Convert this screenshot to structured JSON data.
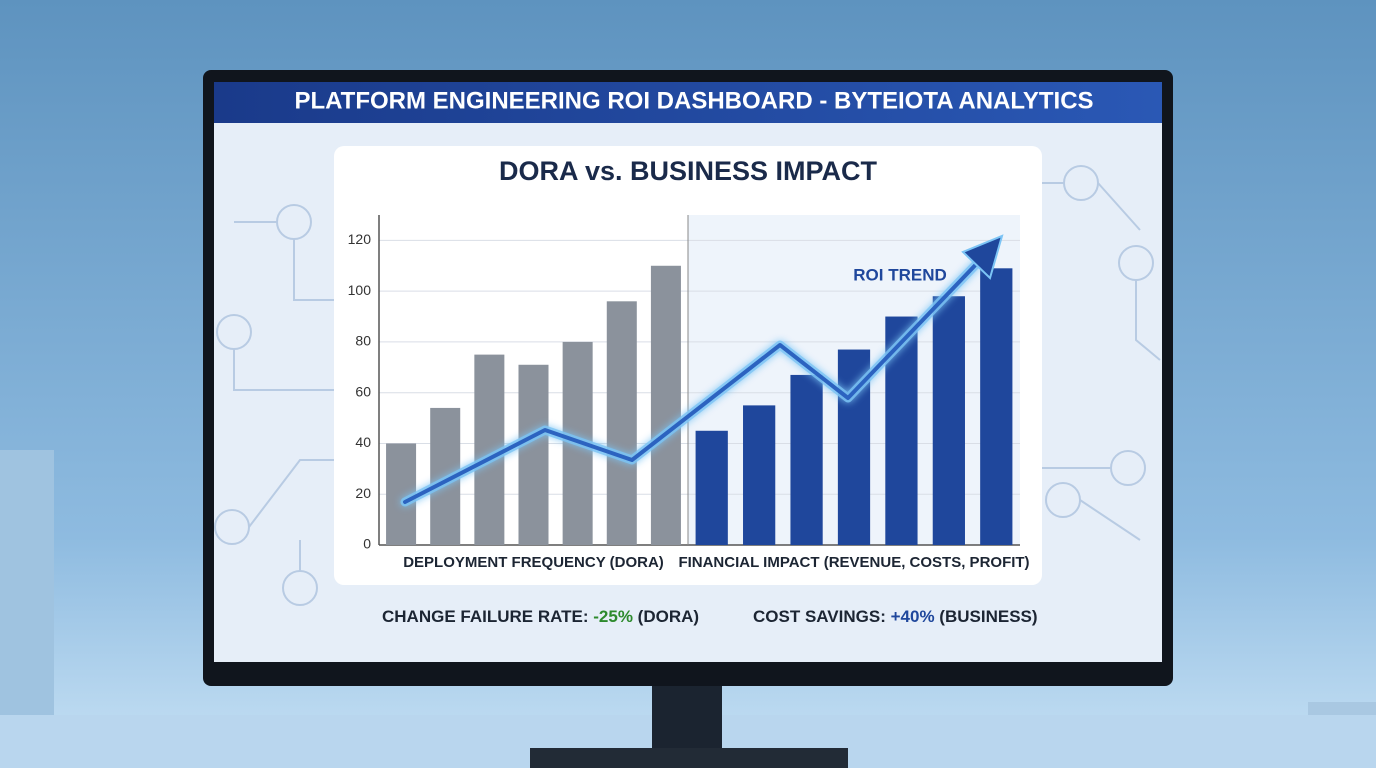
{
  "header": {
    "title": "PLATFORM ENGINEERING ROI DASHBOARD - BYTEIOTA ANALYTICS"
  },
  "chart_data": {
    "type": "bar",
    "title": "DORA vs. BUSINESS IMPACT",
    "annotation": "ROI TREND",
    "series": [
      {
        "name": "DEPLOYMENT FREQUENCY (DORA)",
        "color": "#8b929c",
        "values": [
          40,
          54,
          75,
          71,
          80,
          96,
          110
        ]
      },
      {
        "name": "FINANCIAL IMPACT (REVENUE, COSTS, PROFIT)",
        "color": "#1f479c",
        "values": [
          45,
          55,
          67,
          77,
          90,
          98,
          109
        ]
      }
    ],
    "ylim": [
      0,
      130
    ],
    "yticks": [
      0,
      20,
      40,
      60,
      80,
      100,
      120
    ],
    "grid": true
  },
  "kpis": [
    {
      "label": "CHANGE FAILURE RATE:",
      "value": "-25%",
      "note": "(DORA)"
    },
    {
      "label": "COST SAVINGS:",
      "value": "+40%",
      "note": "(BUSINESS)"
    }
  ]
}
